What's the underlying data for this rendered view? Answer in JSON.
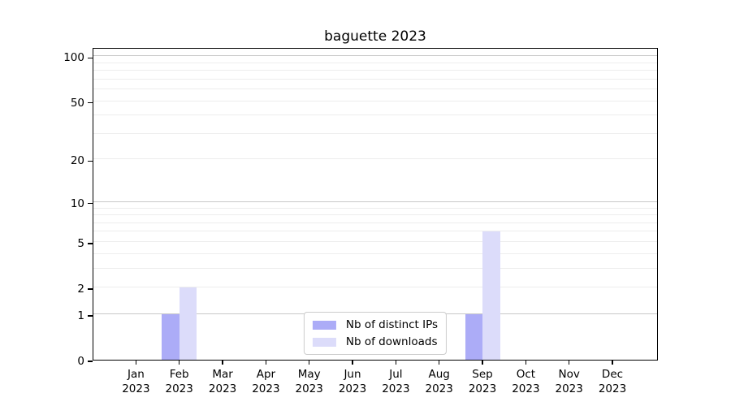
{
  "figure": {
    "background": "#ffffff"
  },
  "chart_data": {
    "type": "bar",
    "title": "baguette 2023",
    "categories": [
      "Jan 2023",
      "Feb 2023",
      "Mar 2023",
      "Apr 2023",
      "May 2023",
      "Jun 2023",
      "Jul 2023",
      "Aug 2023",
      "Sep 2023",
      "Oct 2023",
      "Nov 2023",
      "Dec 2023"
    ],
    "series": [
      {
        "name": "Nb of distinct IPs",
        "color": "#acacf7",
        "values": [
          0,
          1,
          0,
          0,
          0,
          0,
          0,
          0,
          1,
          0,
          0,
          0
        ]
      },
      {
        "name": "Nb of downloads",
        "color": "#dcdcfa",
        "values": [
          0,
          2,
          0,
          0,
          0,
          0,
          0,
          0,
          6,
          0,
          0,
          0
        ]
      }
    ],
    "y_axis": {
      "scale": "log1p",
      "ticks": [
        0,
        1,
        2,
        5,
        10,
        20,
        50,
        100
      ],
      "max": 115,
      "major_gridlines": [
        1,
        10,
        100
      ],
      "minor_gridlines": [
        2,
        3,
        4,
        5,
        6,
        7,
        8,
        9,
        20,
        30,
        40,
        50,
        60,
        70,
        80,
        90
      ]
    },
    "x_axis": {
      "tick_labels_two_lines": true
    },
    "legend": {
      "position": "lower center",
      "entries": [
        "Nb of distinct IPs",
        "Nb of downloads"
      ]
    },
    "grid": true,
    "colors": {
      "major_grid": "#c8c8c8",
      "minor_grid": "#ededed",
      "axis": "#000000",
      "text": "#000000"
    }
  }
}
